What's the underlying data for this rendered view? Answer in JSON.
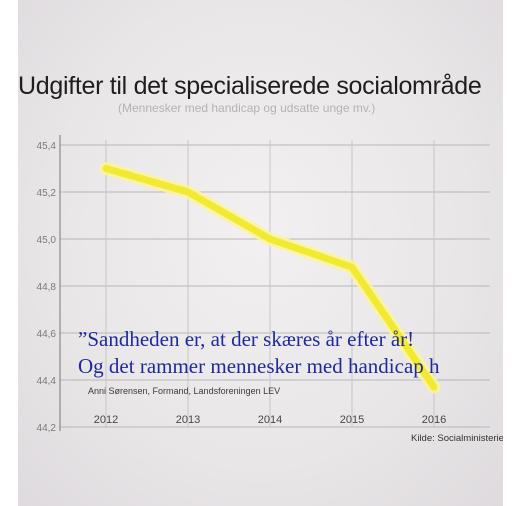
{
  "chart_data": {
    "type": "line",
    "title": "Udgifter til det specialiserede socialområde",
    "subtitle": "(Mennesker med handicap og udsatte unge mv.)",
    "x": [
      "2012",
      "2013",
      "2014",
      "2015",
      "2016"
    ],
    "y_ticks": [
      "44,2",
      "44,4",
      "44,6",
      "44,8",
      "45,0",
      "45,2",
      "45,4"
    ],
    "ylim": [
      44.2,
      45.4
    ],
    "grid": true,
    "series": [
      {
        "color": "#f2ea30",
        "values": [
          45.3,
          45.2,
          45.0,
          44.88,
          44.37
        ]
      }
    ],
    "annotations": {
      "quote_line1": "”Sandheden er, at der skæres år efter år!",
      "quote_line2": "Og det rammer mennesker med handicap h",
      "attribution": "Anni Sørensen, Formand, Landsforeningen LEV"
    },
    "source": "Kilde: Socialministeriet"
  }
}
